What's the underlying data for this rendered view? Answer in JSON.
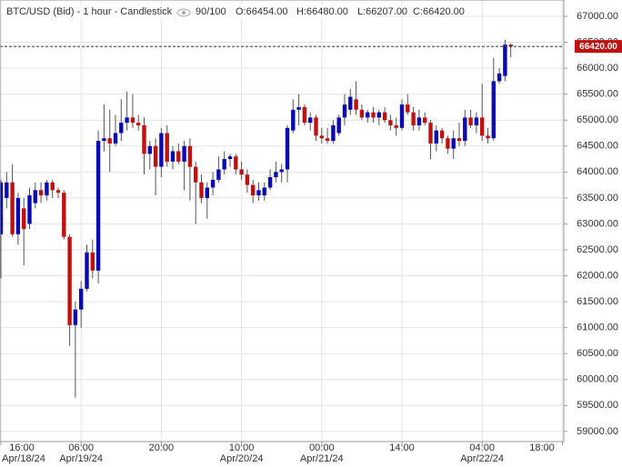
{
  "chart_data": {
    "type": "candlestick",
    "title": "BTC/USD (Bid) - 1 hour - Candlestick",
    "counter": "90/100",
    "info": [
      "O:66454.00",
      "H:66480.00",
      "L:66207.00",
      "C:66420.00"
    ],
    "up_color": "#0a0ab4",
    "down_color": "#c01010",
    "ohlc": [
      [
        62800,
        63850,
        61950,
        63800
      ],
      [
        63500,
        64000,
        63300,
        63800
      ],
      [
        63800,
        64150,
        62750,
        62800
      ],
      [
        62800,
        63600,
        62600,
        63500
      ],
      [
        63300,
        63500,
        62200,
        62900
      ],
      [
        63000,
        63700,
        62900,
        63550
      ],
      [
        63400,
        63800,
        63300,
        63650
      ],
      [
        63650,
        63800,
        63400,
        63550
      ],
      [
        63550,
        63850,
        63450,
        63800
      ],
      [
        63800,
        63850,
        63500,
        63650
      ],
      [
        63650,
        63700,
        63500,
        63600
      ],
      [
        63600,
        63650,
        62700,
        62750
      ],
      [
        62750,
        62800,
        60650,
        61050
      ],
      [
        61050,
        61500,
        59650,
        61350
      ],
      [
        61350,
        61900,
        61000,
        61750
      ],
      [
        61750,
        62600,
        61700,
        62450
      ],
      [
        62450,
        62700,
        61950,
        62100
      ],
      [
        62100,
        64800,
        61850,
        64600
      ],
      [
        64600,
        65300,
        64400,
        64650
      ],
      [
        64650,
        65200,
        64000,
        64550
      ],
      [
        64550,
        65100,
        64500,
        64750
      ],
      [
        64750,
        65400,
        64600,
        64950
      ],
      [
        64950,
        65550,
        64800,
        65050
      ],
      [
        65050,
        65500,
        64850,
        64950
      ],
      [
        64950,
        65100,
        64800,
        64900
      ],
      [
        64900,
        65050,
        63950,
        64350
      ],
      [
        64350,
        64600,
        64050,
        64500
      ],
      [
        64500,
        64650,
        63550,
        64100
      ],
      [
        64100,
        64850,
        63900,
        64750
      ],
      [
        64750,
        64900,
        64100,
        64200
      ],
      [
        64200,
        64500,
        64050,
        64400
      ],
      [
        64400,
        64550,
        64150,
        64200
      ],
      [
        64200,
        64600,
        63650,
        64500
      ],
      [
        64500,
        64650,
        63450,
        64100
      ],
      [
        64100,
        64200,
        63000,
        63800
      ],
      [
        63800,
        63950,
        63400,
        63500
      ],
      [
        63500,
        63800,
        63100,
        63700
      ],
      [
        63700,
        64000,
        63550,
        63850
      ],
      [
        63850,
        64300,
        63800,
        64050
      ],
      [
        64050,
        64400,
        63950,
        64250
      ],
      [
        64250,
        64350,
        64100,
        64300
      ],
      [
        64300,
        64350,
        63950,
        64050
      ],
      [
        64050,
        64200,
        63850,
        63950
      ],
      [
        63950,
        64050,
        63600,
        63750
      ],
      [
        63750,
        63850,
        63400,
        63550
      ],
      [
        63550,
        63800,
        63450,
        63650
      ],
      [
        63550,
        63800,
        63450,
        63700
      ],
      [
        63700,
        64050,
        63650,
        63900
      ],
      [
        63900,
        64200,
        63800,
        64000
      ],
      [
        64000,
        64150,
        63800,
        64050
      ],
      [
        64050,
        64900,
        63800,
        64850
      ],
      [
        64800,
        65400,
        64750,
        65200
      ],
      [
        65200,
        65500,
        64900,
        65250
      ],
      [
        65250,
        65300,
        64900,
        64950
      ],
      [
        64950,
        65150,
        64800,
        65050
      ],
      [
        65050,
        65100,
        64600,
        64700
      ],
      [
        64700,
        64850,
        64550,
        64650
      ],
      [
        64650,
        64850,
        64550,
        64600
      ],
      [
        64600,
        65000,
        64550,
        64900
      ],
      [
        64750,
        65100,
        64700,
        65050
      ],
      [
        65050,
        65500,
        64900,
        65300
      ],
      [
        65200,
        65600,
        65100,
        65450
      ],
      [
        65400,
        65750,
        65100,
        65200
      ],
      [
        65200,
        65300,
        65000,
        65050
      ],
      [
        65050,
        65200,
        64950,
        65150
      ],
      [
        65150,
        65250,
        64950,
        65050
      ],
      [
        65050,
        65200,
        64900,
        65150
      ],
      [
        65150,
        65250,
        64950,
        65000
      ],
      [
        65000,
        65100,
        64800,
        64900
      ],
      [
        64900,
        65050,
        64700,
        64850
      ],
      [
        64850,
        65400,
        64800,
        65300
      ],
      [
        65300,
        65500,
        65100,
        65150
      ],
      [
        65150,
        65250,
        64800,
        64900
      ],
      [
        64900,
        65200,
        64800,
        65050
      ],
      [
        65050,
        65150,
        64900,
        64950
      ],
      [
        64950,
        65000,
        64250,
        64550
      ],
      [
        64550,
        64900,
        64400,
        64800
      ],
      [
        64800,
        64850,
        64550,
        64650
      ],
      [
        64650,
        64700,
        64350,
        64450
      ],
      [
        64450,
        64800,
        64250,
        64650
      ],
      [
        64650,
        64950,
        64500,
        64600
      ],
      [
        64600,
        65200,
        64500,
        65050
      ],
      [
        65050,
        65200,
        64850,
        64900
      ],
      [
        64900,
        65150,
        64750,
        65050
      ],
      [
        65050,
        65700,
        64600,
        64700
      ],
      [
        64700,
        64850,
        64550,
        64650
      ],
      [
        64650,
        66200,
        64600,
        65750
      ],
      [
        65750,
        66000,
        65700,
        65900
      ],
      [
        65850,
        66550,
        65750,
        66454
      ],
      [
        66454,
        66480,
        66207,
        66420
      ]
    ],
    "last_price": {
      "value": 66420,
      "label": "66420.00"
    },
    "ylim": [
      58805,
      67315
    ],
    "yticks": [
      {
        "value": 59000,
        "label": "59000.00"
      },
      {
        "value": 59500,
        "label": "59500.00"
      },
      {
        "value": 60000,
        "label": "60000.00"
      },
      {
        "value": 60500,
        "label": "60500.00"
      },
      {
        "value": 61000,
        "label": "61000.00"
      },
      {
        "value": 61500,
        "label": "61500.00"
      },
      {
        "value": 62000,
        "label": "62000.00"
      },
      {
        "value": 62500,
        "label": "62500.00"
      },
      {
        "value": 63000,
        "label": "63000.00"
      },
      {
        "value": 63500,
        "label": "63500.00"
      },
      {
        "value": 64000,
        "label": "64000.00"
      },
      {
        "value": 64500,
        "label": "64500.00"
      },
      {
        "value": 65000,
        "label": "65000.00"
      },
      {
        "value": 65500,
        "label": "65500.00"
      },
      {
        "value": 66000,
        "label": "66000.00"
      },
      {
        "value": 66500,
        "label": "66500.00"
      },
      {
        "value": 67000,
        "label": "67000.00"
      }
    ],
    "xticks": [
      {
        "value": 0,
        "label": "16:00"
      },
      {
        "value": 14,
        "label": "06:00"
      },
      {
        "value": 28,
        "label": "20:00"
      },
      {
        "value": 42,
        "label": "10:00"
      },
      {
        "value": 56,
        "label": "00:00"
      },
      {
        "value": 70,
        "label": "14:00"
      },
      {
        "value": 84,
        "label": "04:00"
      },
      {
        "value": 98,
        "label": "18:00"
      }
    ],
    "xdates": [
      {
        "value": 0,
        "label": "Apr/18/24"
      },
      {
        "value": 14,
        "label": "Apr/19/24"
      },
      {
        "value": 42,
        "label": "Apr/20/24"
      },
      {
        "value": 56,
        "label": "Apr/21/24"
      },
      {
        "value": 84,
        "label": "Apr/22/24"
      }
    ],
    "grid": true
  }
}
